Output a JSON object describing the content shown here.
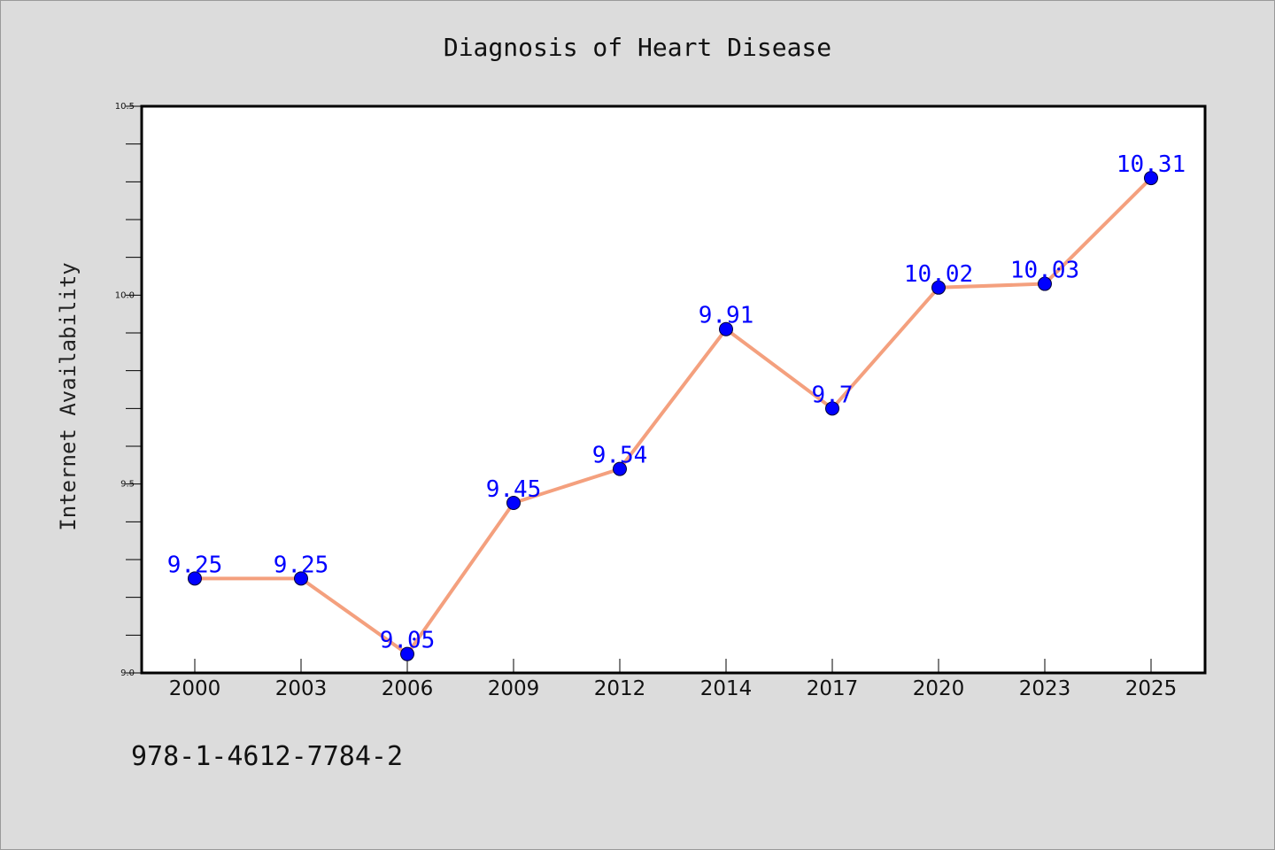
{
  "chart_data": {
    "type": "line",
    "title": "Diagnosis of Heart Disease",
    "xlabel": "",
    "ylabel": "Internet Availability",
    "categories": [
      "2000",
      "2003",
      "2006",
      "2009",
      "2012",
      "2014",
      "2017",
      "2020",
      "2023",
      "2025"
    ],
    "series": [
      {
        "values": [
          9.25,
          9.25,
          9.05,
          9.45,
          9.54,
          9.91,
          9.7,
          10.02,
          10.03,
          10.31
        ],
        "data_labels": [
          "9.25",
          "9.25",
          "9.05",
          "9.45",
          "9.54",
          "9.91",
          "9.7",
          "10.02",
          "10.03",
          "10.31"
        ]
      }
    ],
    "ylim": [
      9.0,
      10.5
    ],
    "yticks": [
      "9.0",
      "9.5",
      "10.0",
      "10.5"
    ],
    "grid": false,
    "colors": {
      "line": "#f4a07e",
      "marker": "#0000ff",
      "marker_edge": "#000033",
      "label": "#0000ff",
      "background": "#dcdcdc",
      "plot_bg": "#ffffff"
    }
  },
  "annotation": "978-1-4612-7784-2"
}
